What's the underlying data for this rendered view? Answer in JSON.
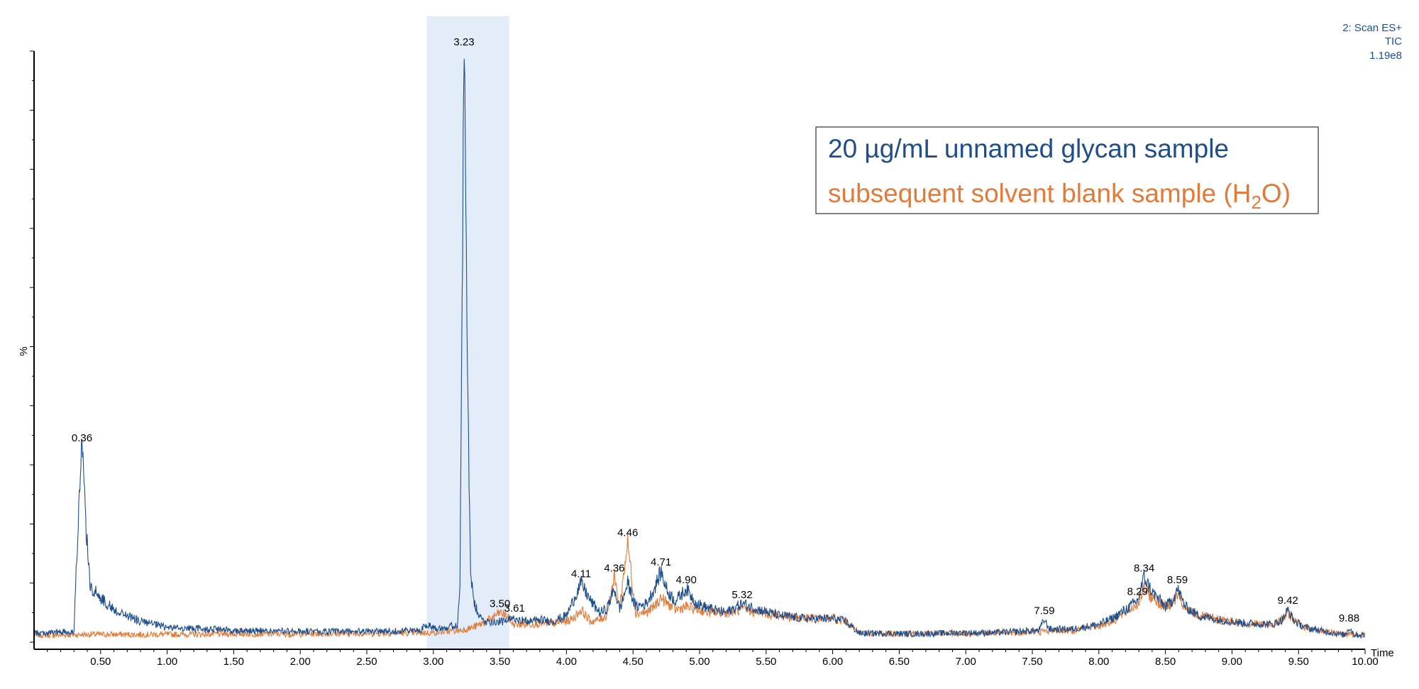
{
  "chart_data": {
    "type": "line",
    "title": "",
    "xlabel": "Time",
    "ylabel": "%",
    "xlim": [
      0,
      10
    ],
    "ylim": [
      0,
      100
    ],
    "x_ticks": [
      "0.50",
      "1.00",
      "1.50",
      "2.00",
      "2.50",
      "3.00",
      "3.50",
      "4.00",
      "4.50",
      "5.00",
      "5.50",
      "6.00",
      "6.50",
      "7.00",
      "7.50",
      "8.00",
      "8.50",
      "9.00",
      "9.50",
      "10.00"
    ],
    "scan_info": [
      "2: Scan ES+",
      "TIC",
      "1.19e8"
    ],
    "highlight_region": [
      2.95,
      3.57
    ],
    "legend": {
      "placement": "top-right",
      "entries": [
        {
          "text": "20 µg/mL unnamed glycan sample",
          "color": "#1f4e8c"
        },
        {
          "text_pre": "subsequent solvent blank sample (H",
          "text_sub": "2",
          "text_post": "O)",
          "color": "#e07b39"
        }
      ]
    },
    "peak_labels": [
      {
        "x": 0.36,
        "label": "0.36"
      },
      {
        "x": 3.23,
        "label": "3.23"
      },
      {
        "x": 3.5,
        "label": "3.50"
      },
      {
        "x": 3.61,
        "label": "3.61"
      },
      {
        "x": 4.11,
        "label": "4.11"
      },
      {
        "x": 4.36,
        "label": "4.36"
      },
      {
        "x": 4.46,
        "label": "4.46"
      },
      {
        "x": 4.71,
        "label": "4.71"
      },
      {
        "x": 4.9,
        "label": "4.90"
      },
      {
        "x": 5.32,
        "label": "5.32"
      },
      {
        "x": 7.59,
        "label": "7.59"
      },
      {
        "x": 8.29,
        "label": "8.29"
      },
      {
        "x": 8.34,
        "label": "8.34"
      },
      {
        "x": 8.59,
        "label": "8.59"
      },
      {
        "x": 9.42,
        "label": "9.42"
      },
      {
        "x": 9.88,
        "label": "9.88"
      }
    ],
    "series": [
      {
        "color": "#1f4e8c",
        "x": [
          0.0,
          0.1,
          0.2,
          0.3,
          0.33,
          0.36,
          0.39,
          0.42,
          0.5,
          0.6,
          0.8,
          1.0,
          1.5,
          2.0,
          2.5,
          2.9,
          2.95,
          3.0,
          3.1,
          3.18,
          3.2,
          3.23,
          3.26,
          3.28,
          3.3,
          3.35,
          3.4,
          3.45,
          3.5,
          3.55,
          3.61,
          3.7,
          3.8,
          3.9,
          4.0,
          4.05,
          4.11,
          4.18,
          4.25,
          4.3,
          4.36,
          4.4,
          4.46,
          4.52,
          4.6,
          4.66,
          4.71,
          4.76,
          4.82,
          4.9,
          4.98,
          5.1,
          5.2,
          5.32,
          5.45,
          5.6,
          5.8,
          6.0,
          6.1,
          6.2,
          6.4,
          6.6,
          6.8,
          7.0,
          7.2,
          7.4,
          7.55,
          7.59,
          7.63,
          7.8,
          8.0,
          8.1,
          8.2,
          8.29,
          8.34,
          8.4,
          8.5,
          8.55,
          8.59,
          8.65,
          8.75,
          8.9,
          9.1,
          9.3,
          9.38,
          9.42,
          9.47,
          9.55,
          9.7,
          9.85,
          9.88,
          9.92,
          10.0
        ],
        "y": [
          1.5,
          1.6,
          1.7,
          1.8,
          20.0,
          33.0,
          20.0,
          9.5,
          7.5,
          5.5,
          3.5,
          2.5,
          2.0,
          1.8,
          1.8,
          2.0,
          3.0,
          2.5,
          2.5,
          3.0,
          10.0,
          100.0,
          40.0,
          12.0,
          7.0,
          4.0,
          3.5,
          3.5,
          3.5,
          3.5,
          4.2,
          3.5,
          3.8,
          3.5,
          4.5,
          7.0,
          10.0,
          7.0,
          5.0,
          5.5,
          9.0,
          5.5,
          10.0,
          6.0,
          6.5,
          9.0,
          12.0,
          8.5,
          7.0,
          9.0,
          6.5,
          5.5,
          5.0,
          6.5,
          5.5,
          4.5,
          4.0,
          4.0,
          3.5,
          1.5,
          1.5,
          1.4,
          1.5,
          1.6,
          1.6,
          1.8,
          2.0,
          3.8,
          2.2,
          2.2,
          3.0,
          4.0,
          5.5,
          7.0,
          11.0,
          8.5,
          6.0,
          7.0,
          9.0,
          6.0,
          4.5,
          3.8,
          3.2,
          3.0,
          3.8,
          5.5,
          3.5,
          2.5,
          1.8,
          1.2,
          2.5,
          1.3,
          1.2
        ]
      },
      {
        "color": "#e07b39",
        "x": [
          0.0,
          0.2,
          0.4,
          0.6,
          0.8,
          1.0,
          1.5,
          2.0,
          2.5,
          3.0,
          3.2,
          3.3,
          3.4,
          3.5,
          3.55,
          3.6,
          3.7,
          3.8,
          3.9,
          4.0,
          4.05,
          4.11,
          4.18,
          4.25,
          4.3,
          4.36,
          4.4,
          4.46,
          4.52,
          4.6,
          4.66,
          4.71,
          4.76,
          4.82,
          4.9,
          4.98,
          5.1,
          5.2,
          5.32,
          5.45,
          5.6,
          5.8,
          6.0,
          6.1,
          6.2,
          6.4,
          6.6,
          6.8,
          7.0,
          7.2,
          7.4,
          7.55,
          7.59,
          7.63,
          7.8,
          8.0,
          8.1,
          8.2,
          8.29,
          8.34,
          8.4,
          8.5,
          8.55,
          8.59,
          8.65,
          8.75,
          8.9,
          9.1,
          9.3,
          9.38,
          9.42,
          9.47,
          9.55,
          9.7,
          9.85,
          9.88,
          9.92,
          10.0
        ],
        "y": [
          1.2,
          1.2,
          1.3,
          1.3,
          1.3,
          1.3,
          1.4,
          1.4,
          1.5,
          1.6,
          2.0,
          2.5,
          3.5,
          5.0,
          4.5,
          3.0,
          3.0,
          3.2,
          3.2,
          3.5,
          4.0,
          5.5,
          3.5,
          3.8,
          4.5,
          11.0,
          6.0,
          17.0,
          5.0,
          5.0,
          6.0,
          7.5,
          6.5,
          5.5,
          6.0,
          5.5,
          5.0,
          5.0,
          5.5,
          5.0,
          4.5,
          4.0,
          4.0,
          3.5,
          1.5,
          1.5,
          1.4,
          1.5,
          1.5,
          1.5,
          1.6,
          1.8,
          1.8,
          2.0,
          2.0,
          2.8,
          3.5,
          5.0,
          6.5,
          9.0,
          7.5,
          6.0,
          6.5,
          8.0,
          5.5,
          4.5,
          3.8,
          3.2,
          3.0,
          3.8,
          5.0,
          3.5,
          2.5,
          1.8,
          1.3,
          1.4,
          1.2,
          1.2
        ]
      }
    ]
  }
}
